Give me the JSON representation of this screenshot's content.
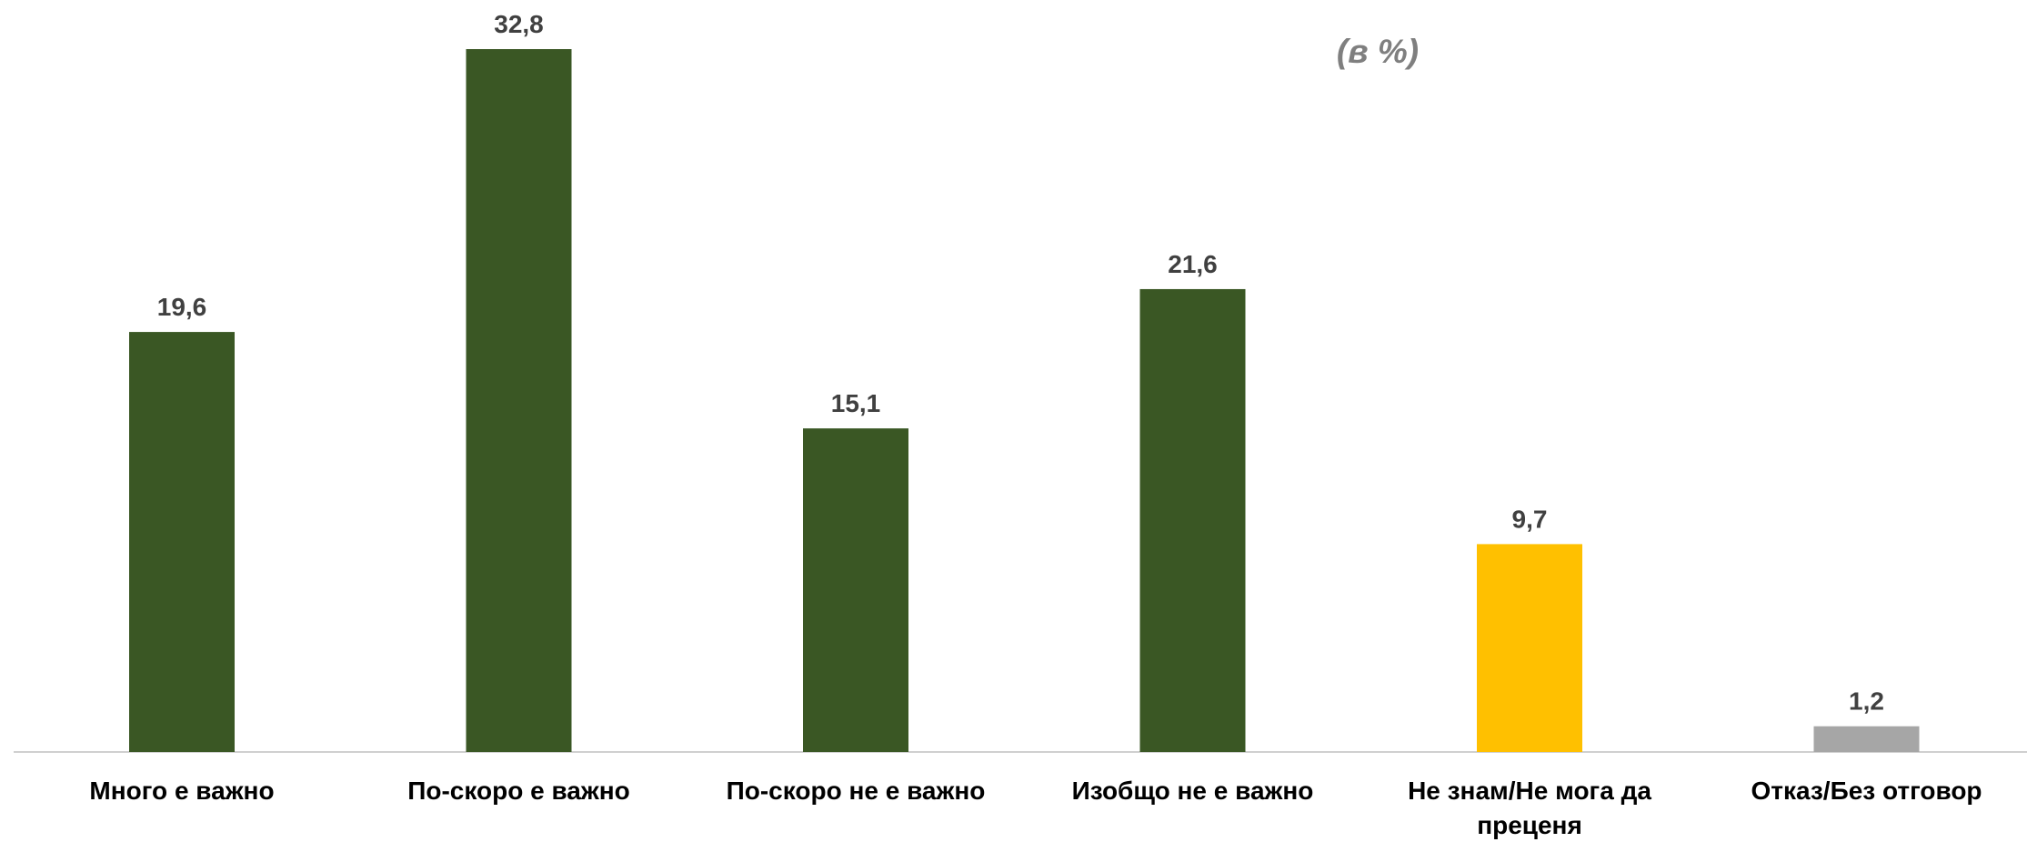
{
  "chart_data": {
    "type": "bar",
    "subtitle": "(в %)",
    "categories": [
      "Много е важно",
      "По-скоро е важно",
      "По-скоро не е важно",
      "Изобщо не е важно",
      "Не знам/Не мога да преценя",
      "Отказ/Без отговор"
    ],
    "values": [
      19.6,
      32.8,
      15.1,
      21.6,
      9.7,
      1.2
    ],
    "value_labels": [
      "19,6",
      "32,8",
      "15,1",
      "21,6",
      "9,7",
      "1,2"
    ],
    "colors": [
      "#3a5724",
      "#3a5724",
      "#3a5724",
      "#3a5724",
      "#ffc000",
      "#a6a6a6"
    ]
  }
}
